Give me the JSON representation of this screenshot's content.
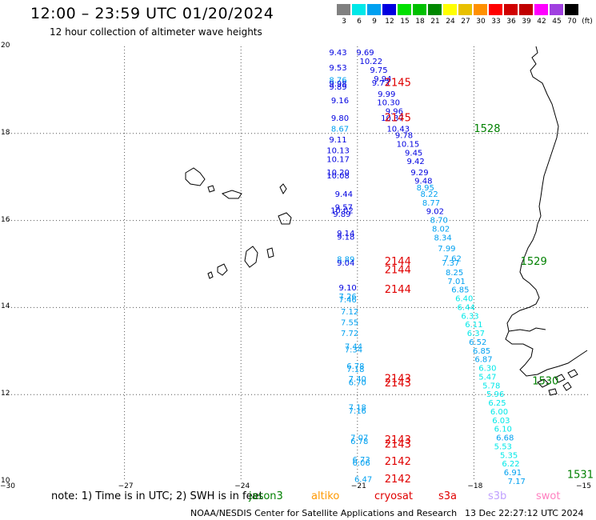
{
  "header": {
    "title": "12:00 – 23:59 UTC 01/20/2024",
    "subtitle": "12 hour collection of altimeter wave heights"
  },
  "legend": {
    "unit": "(ft)",
    "items": [
      {
        "label": "3",
        "color": "#808080"
      },
      {
        "label": "6",
        "color": "#00e8e8"
      },
      {
        "label": "9",
        "color": "#00a0f0"
      },
      {
        "label": "12",
        "color": "#0000e0"
      },
      {
        "label": "15",
        "color": "#00e000"
      },
      {
        "label": "18",
        "color": "#00c000"
      },
      {
        "label": "21",
        "color": "#008800"
      },
      {
        "label": "24",
        "color": "#ffff00"
      },
      {
        "label": "27",
        "color": "#e8c000"
      },
      {
        "label": "30",
        "color": "#ff9000"
      },
      {
        "label": "33",
        "color": "#ff0000"
      },
      {
        "label": "36",
        "color": "#d00000"
      },
      {
        "label": "39",
        "color": "#c00000"
      },
      {
        "label": "42",
        "color": "#ff00ff"
      },
      {
        "label": "45",
        "color": "#a040e0"
      },
      {
        "label": "70",
        "color": "#000000"
      }
    ]
  },
  "axes": {
    "lat_ticks": [
      "20",
      "18",
      "16",
      "14",
      "12",
      "10"
    ],
    "lon_ticks": [
      "−30",
      "−27",
      "−24",
      "−21",
      "−18",
      "−15"
    ],
    "lat_range": [
      10,
      20
    ],
    "lon_range": [
      -30,
      -15
    ]
  },
  "passes": [
    {
      "label": "2145",
      "lon": -20.3,
      "lat": 19.15,
      "color": "#e00000"
    },
    {
      "label": "2145",
      "lon": -20.3,
      "lat": 18.35,
      "color": "#e00000"
    },
    {
      "label": "1528",
      "lon": -18.0,
      "lat": 18.1,
      "color": "#008000"
    },
    {
      "label": "2144",
      "lon": -20.3,
      "lat": 15.05,
      "color": "#e00000"
    },
    {
      "label": "2144",
      "lon": -20.3,
      "lat": 14.85,
      "color": "#e00000"
    },
    {
      "label": "1529",
      "lon": -16.8,
      "lat": 15.05,
      "color": "#008000"
    },
    {
      "label": "2144",
      "lon": -20.3,
      "lat": 14.4,
      "color": "#e00000"
    },
    {
      "label": "2143",
      "lon": -20.3,
      "lat": 12.35,
      "color": "#e00000"
    },
    {
      "label": "2143",
      "lon": -20.3,
      "lat": 12.25,
      "color": "#e00000"
    },
    {
      "label": "1530",
      "lon": -16.5,
      "lat": 12.3,
      "color": "#008000"
    },
    {
      "label": "2143",
      "lon": -20.3,
      "lat": 10.95,
      "color": "#e00000"
    },
    {
      "label": "2143",
      "lon": -20.3,
      "lat": 10.85,
      "color": "#e00000"
    },
    {
      "label": "2142",
      "lon": -20.3,
      "lat": 10.45,
      "color": "#e00000"
    },
    {
      "label": "2142",
      "lon": -20.3,
      "lat": 10.05,
      "color": "#e00000"
    },
    {
      "label": "1531",
      "lon": -15.6,
      "lat": 10.15,
      "color": "#008000"
    }
  ],
  "observations": [
    {
      "v": "9.43",
      "lon": -21.5,
      "lat": 19.85,
      "color": "#0000e0"
    },
    {
      "v": "9.53",
      "lon": -21.5,
      "lat": 19.5,
      "color": "#0000e0"
    },
    {
      "v": "8.76",
      "lon": -21.5,
      "lat": 19.22,
      "color": "#00a0f0"
    },
    {
      "v": "9.98",
      "lon": -21.5,
      "lat": 19.14,
      "color": "#0000e0"
    },
    {
      "v": "9.89",
      "lon": -21.5,
      "lat": 19.06,
      "color": "#0000e0"
    },
    {
      "v": "9.16",
      "lon": -21.45,
      "lat": 18.75,
      "color": "#0000e0"
    },
    {
      "v": "9.80",
      "lon": -21.45,
      "lat": 18.35,
      "color": "#0000e0"
    },
    {
      "v": "8.67",
      "lon": -21.45,
      "lat": 18.1,
      "color": "#00a0f0"
    },
    {
      "v": "9.11",
      "lon": -21.5,
      "lat": 17.85,
      "color": "#0000e0"
    },
    {
      "v": "10.13",
      "lon": -21.5,
      "lat": 17.6,
      "color": "#0000e0"
    },
    {
      "v": "10.17",
      "lon": -21.5,
      "lat": 17.4,
      "color": "#0000e0"
    },
    {
      "v": "10.20",
      "lon": -21.5,
      "lat": 17.1,
      "color": "#0000e0"
    },
    {
      "v": "10.08",
      "lon": -21.5,
      "lat": 17.02,
      "color": "#0000e0"
    },
    {
      "v": "9.44",
      "lon": -21.35,
      "lat": 16.6,
      "color": "#0000e0"
    },
    {
      "v": "9.57",
      "lon": -21.35,
      "lat": 16.3,
      "color": "#0000e0"
    },
    {
      "v": "10.02",
      "lon": -21.4,
      "lat": 16.22,
      "color": "#0000e0"
    },
    {
      "v": "9.89",
      "lon": -21.4,
      "lat": 16.14,
      "color": "#0000e0"
    },
    {
      "v": "9.14",
      "lon": -21.3,
      "lat": 15.7,
      "color": "#0000e0"
    },
    {
      "v": "9.18",
      "lon": -21.3,
      "lat": 15.62,
      "color": "#0000e0"
    },
    {
      "v": "8.89",
      "lon": -21.3,
      "lat": 15.1,
      "color": "#00a0f0"
    },
    {
      "v": "9.04",
      "lon": -21.3,
      "lat": 15.02,
      "color": "#0000e0"
    },
    {
      "v": "9.10",
      "lon": -21.25,
      "lat": 14.45,
      "color": "#0000e0"
    },
    {
      "v": "7.26",
      "lon": -21.25,
      "lat": 14.25,
      "color": "#00a0f0"
    },
    {
      "v": "7.46",
      "lon": -21.25,
      "lat": 14.17,
      "color": "#00a0f0"
    },
    {
      "v": "7.12",
      "lon": -21.2,
      "lat": 13.9,
      "color": "#00a0f0"
    },
    {
      "v": "7.55",
      "lon": -21.2,
      "lat": 13.65,
      "color": "#00a0f0"
    },
    {
      "v": "7.72",
      "lon": -21.2,
      "lat": 13.4,
      "color": "#00a0f0"
    },
    {
      "v": "7.44",
      "lon": -21.1,
      "lat": 13.1,
      "color": "#00a0f0"
    },
    {
      "v": "7.34",
      "lon": -21.1,
      "lat": 13.02,
      "color": "#00a0f0"
    },
    {
      "v": "6.78",
      "lon": -21.05,
      "lat": 12.65,
      "color": "#00a0f0"
    },
    {
      "v": "7.18",
      "lon": -21.05,
      "lat": 12.57,
      "color": "#00a0f0"
    },
    {
      "v": "7.40",
      "lon": -21.0,
      "lat": 12.35,
      "color": "#00a0f0"
    },
    {
      "v": "6.70",
      "lon": -21.0,
      "lat": 12.27,
      "color": "#00a0f0"
    },
    {
      "v": "7.18",
      "lon": -21.0,
      "lat": 11.7,
      "color": "#00a0f0"
    },
    {
      "v": "7.16",
      "lon": -21.0,
      "lat": 11.62,
      "color": "#00a0f0"
    },
    {
      "v": "7.07",
      "lon": -20.95,
      "lat": 11.0,
      "color": "#00a0f0"
    },
    {
      "v": "6.78",
      "lon": -20.95,
      "lat": 10.92,
      "color": "#00a0f0"
    },
    {
      "v": "6.73",
      "lon": -20.9,
      "lat": 10.5,
      "color": "#00a0f0"
    },
    {
      "v": "6.06",
      "lon": -20.9,
      "lat": 10.42,
      "color": "#00a0f0"
    },
    {
      "v": "6.47",
      "lon": -20.85,
      "lat": 10.05,
      "color": "#00a0f0"
    },
    {
      "v": "9.69",
      "lon": -20.8,
      "lat": 19.85,
      "color": "#0000e0"
    },
    {
      "v": "10.22",
      "lon": -20.65,
      "lat": 19.65,
      "color": "#0000e0"
    },
    {
      "v": "9.75",
      "lon": -20.45,
      "lat": 19.45,
      "color": "#0000e0"
    },
    {
      "v": "9.94",
      "lon": -20.35,
      "lat": 19.25,
      "color": "#0000e0"
    },
    {
      "v": "9.73",
      "lon": -20.4,
      "lat": 19.15,
      "color": "#0000e0"
    },
    {
      "v": "9.99",
      "lon": -20.25,
      "lat": 18.9,
      "color": "#0000e0"
    },
    {
      "v": "10.30",
      "lon": -20.2,
      "lat": 18.7,
      "color": "#0000e0"
    },
    {
      "v": "9.96",
      "lon": -20.05,
      "lat": 18.5,
      "color": "#0000e0"
    },
    {
      "v": "10.37",
      "lon": -20.1,
      "lat": 18.35,
      "color": "#0000e0"
    },
    {
      "v": "10.43",
      "lon": -19.95,
      "lat": 18.1,
      "color": "#0000e0"
    },
    {
      "v": "9.78",
      "lon": -19.8,
      "lat": 17.95,
      "color": "#0000e0"
    },
    {
      "v": "10.15",
      "lon": -19.7,
      "lat": 17.75,
      "color": "#0000e0"
    },
    {
      "v": "9.45",
      "lon": -19.55,
      "lat": 17.55,
      "color": "#0000e0"
    },
    {
      "v": "9.42",
      "lon": -19.5,
      "lat": 17.35,
      "color": "#0000e0"
    },
    {
      "v": "9.29",
      "lon": -19.4,
      "lat": 17.1,
      "color": "#0000e0"
    },
    {
      "v": "9.48",
      "lon": -19.3,
      "lat": 16.9,
      "color": "#0000e0"
    },
    {
      "v": "8.95",
      "lon": -19.25,
      "lat": 16.75,
      "color": "#00a0f0"
    },
    {
      "v": "8.22",
      "lon": -19.15,
      "lat": 16.6,
      "color": "#00a0f0"
    },
    {
      "v": "8.77",
      "lon": -19.1,
      "lat": 16.4,
      "color": "#00a0f0"
    },
    {
      "v": "9.02",
      "lon": -19.0,
      "lat": 16.2,
      "color": "#0000e0"
    },
    {
      "v": "8.70",
      "lon": -18.9,
      "lat": 16.0,
      "color": "#00a0f0"
    },
    {
      "v": "8.02",
      "lon": -18.85,
      "lat": 15.8,
      "color": "#00a0f0"
    },
    {
      "v": "8.34",
      "lon": -18.8,
      "lat": 15.6,
      "color": "#00a0f0"
    },
    {
      "v": "7.99",
      "lon": -18.7,
      "lat": 15.35,
      "color": "#00a0f0"
    },
    {
      "v": "7.62",
      "lon": -18.55,
      "lat": 15.12,
      "color": "#00a0f0"
    },
    {
      "v": "7.37",
      "lon": -18.6,
      "lat": 15.02,
      "color": "#00a0f0"
    },
    {
      "v": "8.25",
      "lon": -18.5,
      "lat": 14.8,
      "color": "#00a0f0"
    },
    {
      "v": "7.01",
      "lon": -18.45,
      "lat": 14.6,
      "color": "#00a0f0"
    },
    {
      "v": "6.85",
      "lon": -18.35,
      "lat": 14.4,
      "color": "#00a0f0"
    },
    {
      "v": "6.40",
      "lon": -18.25,
      "lat": 14.2,
      "color": "#00e8e8"
    },
    {
      "v": "6.44",
      "lon": -18.2,
      "lat": 14.0,
      "color": "#00e8e8"
    },
    {
      "v": "6.33",
      "lon": -18.1,
      "lat": 13.8,
      "color": "#00e8e8"
    },
    {
      "v": "6.11",
      "lon": -18.0,
      "lat": 13.6,
      "color": "#00e8e8"
    },
    {
      "v": "6.37",
      "lon": -17.95,
      "lat": 13.4,
      "color": "#00e8e8"
    },
    {
      "v": "6.52",
      "lon": -17.9,
      "lat": 13.2,
      "color": "#00a0f0"
    },
    {
      "v": "6.85",
      "lon": -17.8,
      "lat": 13.0,
      "color": "#00a0f0"
    },
    {
      "v": "6.87",
      "lon": -17.75,
      "lat": 12.8,
      "color": "#00a0f0"
    },
    {
      "v": "6.30",
      "lon": -17.65,
      "lat": 12.6,
      "color": "#00e8e8"
    },
    {
      "v": "5.47",
      "lon": -17.65,
      "lat": 12.4,
      "color": "#00e8e8"
    },
    {
      "v": "5.78",
      "lon": -17.55,
      "lat": 12.2,
      "color": "#00e8e8"
    },
    {
      "v": "5.96",
      "lon": -17.45,
      "lat": 12.0,
      "color": "#00e8e8"
    },
    {
      "v": "6.25",
      "lon": -17.4,
      "lat": 11.8,
      "color": "#00e8e8"
    },
    {
      "v": "6.00",
      "lon": -17.35,
      "lat": 11.6,
      "color": "#00e8e8"
    },
    {
      "v": "6.03",
      "lon": -17.3,
      "lat": 11.4,
      "color": "#00e8e8"
    },
    {
      "v": "6.10",
      "lon": -17.25,
      "lat": 11.2,
      "color": "#00e8e8"
    },
    {
      "v": "6.68",
      "lon": -17.2,
      "lat": 11.0,
      "color": "#00a0f0"
    },
    {
      "v": "5.53",
      "lon": -17.25,
      "lat": 10.8,
      "color": "#00e8e8"
    },
    {
      "v": "5.35",
      "lon": -17.1,
      "lat": 10.6,
      "color": "#00e8e8"
    },
    {
      "v": "6.22",
      "lon": -17.05,
      "lat": 10.4,
      "color": "#00e8e8"
    },
    {
      "v": "6.91",
      "lon": -17.0,
      "lat": 10.2,
      "color": "#00a0f0"
    },
    {
      "v": "7.17",
      "lon": -16.9,
      "lat": 10.0,
      "color": "#00a0f0"
    }
  ],
  "footer": {
    "note": "note:  1) Time is in UTC;  2) SWH is in feet",
    "satellites": [
      {
        "label": "jason3",
        "color": "#008000"
      },
      {
        "label": "altiko",
        "color": "#ff9900"
      },
      {
        "label": "cryosat",
        "color": "#e00000"
      },
      {
        "label": "s3a",
        "color": "#e00000"
      },
      {
        "label": "s3b",
        "color": "#c0a0ff"
      },
      {
        "label": "swot",
        "color": "#ff80c0"
      }
    ],
    "credit": "NOAA/NESDIS Center for Satellite Applications and Research",
    "timestamp": "13 Dec 22:27:12 UTC 2024"
  }
}
